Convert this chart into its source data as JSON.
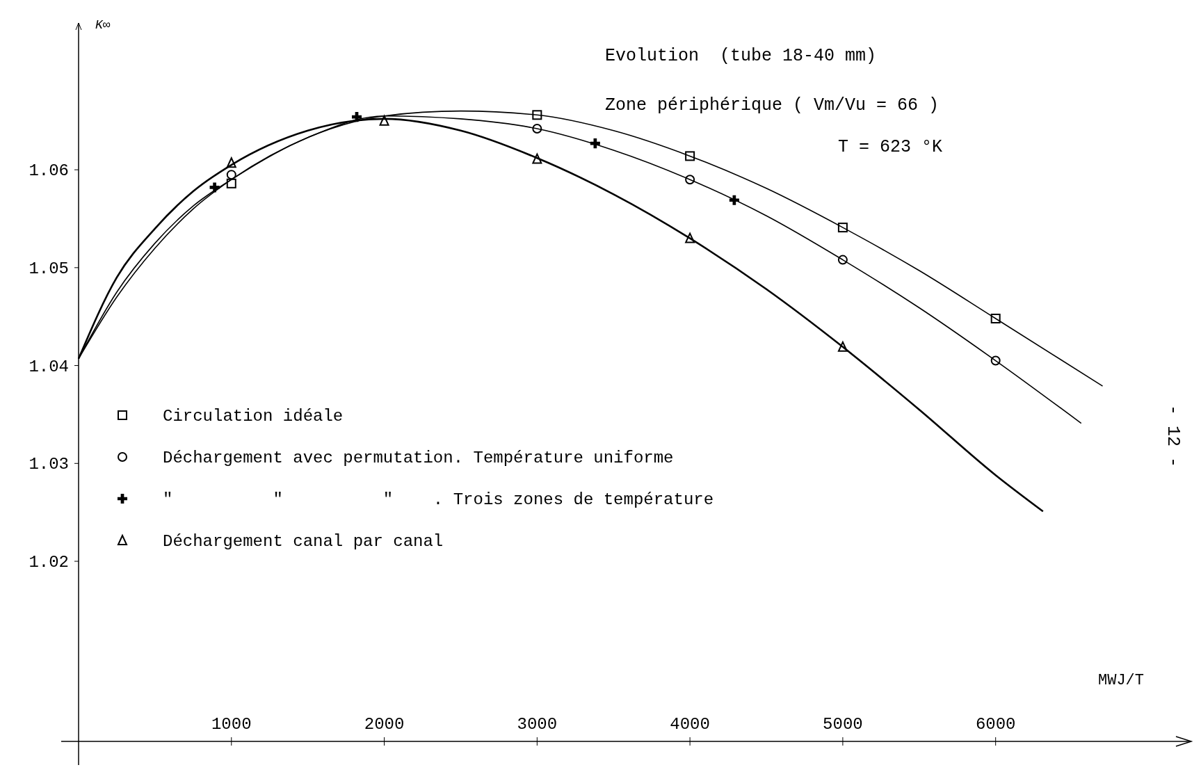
{
  "chart_data": {
    "type": "scatter",
    "title": "Evolution  (tube 18-40 mm)",
    "subtitle": "Zone périphérique ( Vm/Vu = 66 )",
    "annotations": [
      "T = 623 °K",
      "- 12 -"
    ],
    "ylabel": "K∞",
    "xlabel": "MWJ/T",
    "xlim": [
      0,
      7280
    ],
    "ylim": [
      1.0016,
      1.075
    ],
    "xticks": [
      1000,
      2000,
      3000,
      4000,
      5000,
      6000
    ],
    "yticks": [
      1.02,
      1.03,
      1.04,
      1.05,
      1.06
    ],
    "grid": false,
    "legend": "left",
    "series": [
      {
        "type": "line",
        "marker": "none",
        "color": "#000000",
        "x": [
          0,
          250,
          500,
          750,
          1000,
          1500,
          2000,
          2500,
          3000,
          3500,
          4000,
          4500,
          5000,
          5500,
          6000,
          6700
        ],
        "values": [
          1.0407,
          1.0475,
          1.0525,
          1.0563,
          1.059,
          1.0633,
          1.0655,
          1.066,
          1.0656,
          1.064,
          1.0614,
          1.0581,
          1.0541,
          1.0497,
          1.0448,
          1.0379
        ]
      },
      {
        "type": "line",
        "marker": "none",
        "color": "#000000",
        "x": [
          0,
          250,
          500,
          750,
          1000,
          1500,
          2000,
          2500,
          3000,
          3500,
          4000,
          4500,
          5000,
          5500,
          6000,
          6560
        ],
        "values": [
          1.0407,
          1.047,
          1.052,
          1.056,
          1.059,
          1.0633,
          1.0655,
          1.0652,
          1.0642,
          1.062,
          1.059,
          1.0553,
          1.0508,
          1.0459,
          1.0405,
          1.0341
        ]
      },
      {
        "type": "line",
        "marker": "none",
        "color": "#000000",
        "x": [
          0,
          250,
          500,
          750,
          1000,
          1500,
          2000,
          2500,
          3000,
          3500,
          4000,
          4500,
          5000,
          5500,
          6000,
          6310
        ],
        "values": [
          1.0407,
          1.049,
          1.054,
          1.0578,
          1.0605,
          1.064,
          1.0652,
          1.064,
          1.0612,
          1.0575,
          1.053,
          1.0478,
          1.0419,
          1.0355,
          1.0288,
          1.0251
        ]
      },
      {
        "name": "Circulation idéale",
        "marker": "square",
        "color": "#000000",
        "x": [
          1000,
          3000,
          4000,
          5000,
          6000
        ],
        "values": [
          1.0586,
          1.0656,
          1.0614,
          1.0541,
          1.0448
        ]
      },
      {
        "name": "Déchargement avec permutation. Température uniforme",
        "marker": "circle",
        "color": "#000000",
        "x": [
          1000,
          3000,
          4000,
          5000,
          6000
        ],
        "values": [
          1.0595,
          1.0642,
          1.059,
          1.0508,
          1.0405
        ]
      },
      {
        "name": "\"          \"          \"    . Trois zones de température",
        "marker": "cross",
        "color": "#000000",
        "x": [
          890,
          1820,
          3380,
          4290
        ],
        "values": [
          1.0582,
          1.0654,
          1.0627,
          1.0569
        ]
      },
      {
        "name": "Déchargement canal par canal",
        "marker": "triangle",
        "color": "#000000",
        "x": [
          1000,
          2000,
          3000,
          4000,
          5000
        ],
        "values": [
          1.0607,
          1.065,
          1.0611,
          1.053,
          1.0419
        ]
      }
    ]
  }
}
